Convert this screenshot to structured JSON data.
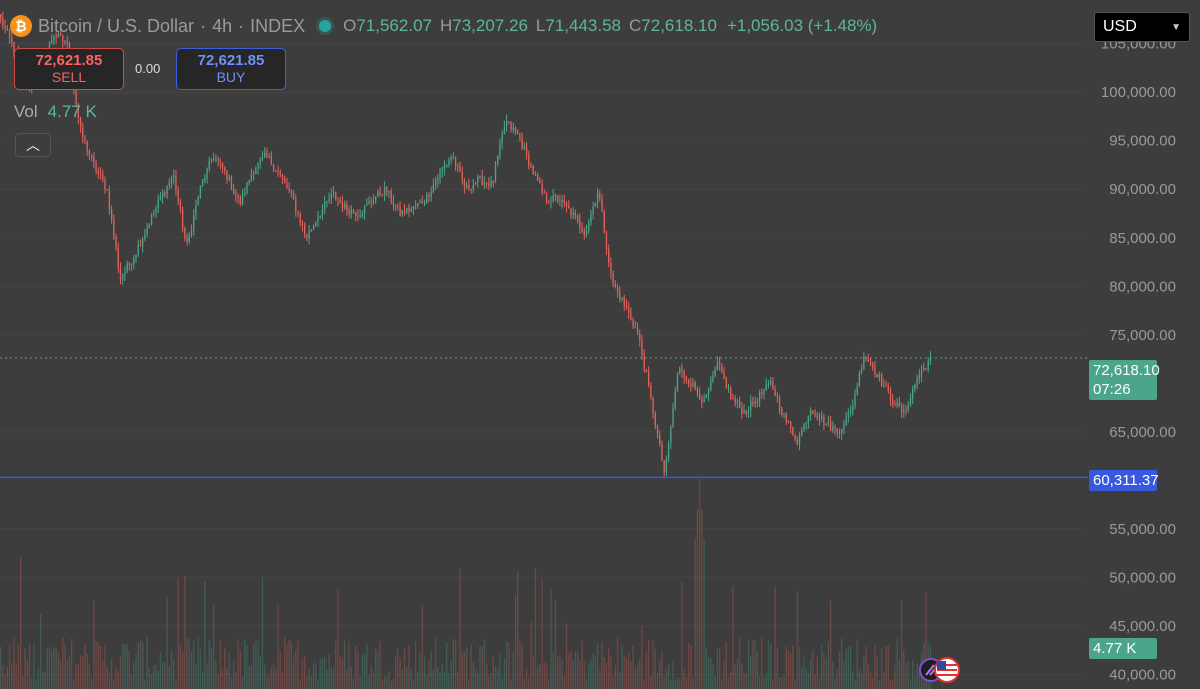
{
  "header": {
    "symbol": "Bitcoin / U.S. Dollar",
    "interval": "4h",
    "exchange": "INDEX",
    "symbol_icon": "bitcoin-icon",
    "ohlc": {
      "open_label": "O",
      "open": "71,562.07",
      "high_label": "H",
      "high": "73,207.26",
      "low_label": "L",
      "low": "71,443.58",
      "close_label": "C",
      "close": "72,618.10",
      "change": "+1,056.03 (+1.48%)"
    }
  },
  "currency": {
    "selected": "USD"
  },
  "trade": {
    "sell_price": "72,621.85",
    "sell_label": "SELL",
    "buy_price": "72,621.85",
    "buy_label": "BUY",
    "spread": "0.00"
  },
  "volume": {
    "label": "Vol",
    "value": "4.77 K"
  },
  "price_axis": {
    "labels": [
      "105,000.00",
      "100,000.00",
      "95,000.00",
      "90,000.00",
      "85,000.00",
      "80,000.00",
      "75,000.00",
      "65,000.00",
      "55,000.00",
      "50,000.00",
      "45,000.00",
      "40,000.00"
    ],
    "last_price": "72,618.10",
    "countdown": "07:26",
    "horizontal_line_price": "60,311.37",
    "volume_tag": "4.77 K"
  },
  "colors": {
    "background": "#3d3d3d",
    "up": "#4aa58a",
    "down": "#e0625b",
    "line": "#3858e0"
  },
  "chart_data": {
    "type": "candlestick",
    "title": "",
    "xlabel": "",
    "ylabel": "",
    "ylim": [
      38500,
      109500
    ],
    "horizontal_line": 60311.37,
    "last_price": 72618.1,
    "y_ticks": [
      105000,
      100000,
      95000,
      90000,
      85000,
      80000,
      75000,
      65000,
      55000,
      50000,
      45000,
      40000
    ],
    "series": [
      {
        "values": [
          107500,
          104500,
          100000,
          102500,
          106000,
          105000,
          96000,
          92500,
          90000,
          80800,
          83000,
          86000,
          89000,
          91500,
          84000,
          90000,
          93500,
          91500,
          88500,
          92000,
          93500,
          91500,
          89000,
          85000,
          87500,
          89500,
          88000,
          87500,
          89000,
          90000,
          87500,
          88000,
          89000,
          91500,
          93500,
          90000,
          91000,
          90500,
          97000,
          95500,
          92000,
          89000,
          89000,
          87500,
          85500,
          90000,
          80500,
          78000,
          75000,
          68000,
          60500,
          71500,
          70000,
          68000,
          72000,
          68500,
          67000,
          68500,
          70000,
          66500,
          64000,
          67500,
          66000,
          65000,
          67000,
          73000,
          71000,
          68500,
          66800,
          70500,
          72600
        ]
      }
    ]
  }
}
